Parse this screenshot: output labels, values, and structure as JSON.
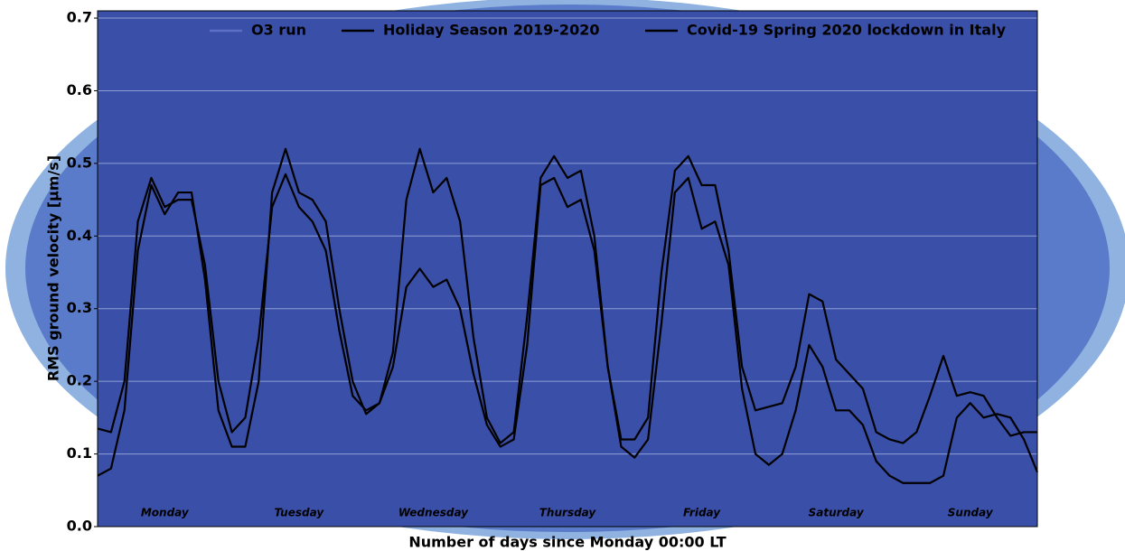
{
  "chart_data": {
    "type": "line",
    "xlabel": "Number of days since Monday 00:00 LT",
    "ylabel": "RMS ground velocity [μm/s]",
    "x": [
      0,
      0.1,
      0.2,
      0.3,
      0.4,
      0.5,
      0.6,
      0.7,
      0.8,
      0.9,
      1.0,
      1.1,
      1.2,
      1.3,
      1.4,
      1.5,
      1.6,
      1.7,
      1.8,
      1.9,
      2.0,
      2.1,
      2.2,
      2.3,
      2.4,
      2.5,
      2.6,
      2.7,
      2.8,
      2.9,
      3.0,
      3.1,
      3.2,
      3.3,
      3.4,
      3.5,
      3.6,
      3.7,
      3.8,
      3.9,
      4.0,
      4.1,
      4.2,
      4.3,
      4.4,
      4.5,
      4.6,
      4.7,
      4.8,
      4.9,
      5.0,
      5.1,
      5.2,
      5.3,
      5.4,
      5.5,
      5.6,
      5.7,
      5.8,
      5.9,
      6.0,
      6.1,
      6.2,
      6.3,
      6.4,
      6.5,
      6.6,
      6.7,
      6.8,
      6.9,
      7.0
    ],
    "series": [
      {
        "name": "O3 run",
        "color": "#5b6fc4"
      },
      {
        "name": "Holiday Season 2019-2020",
        "color": "#000000",
        "values": [
          0.135,
          0.13,
          0.2,
          0.42,
          0.48,
          0.44,
          0.45,
          0.45,
          0.36,
          0.2,
          0.13,
          0.15,
          0.26,
          0.44,
          0.485,
          0.44,
          0.42,
          0.38,
          0.27,
          0.18,
          0.16,
          0.17,
          0.24,
          0.45,
          0.52,
          0.46,
          0.48,
          0.42,
          0.26,
          0.15,
          0.115,
          0.13,
          0.29,
          0.48,
          0.51,
          0.48,
          0.49,
          0.4,
          0.22,
          0.12,
          0.12,
          0.15,
          0.35,
          0.49,
          0.51,
          0.47,
          0.47,
          0.38,
          0.22,
          0.16,
          0.165,
          0.17,
          0.22,
          0.32,
          0.31,
          0.23,
          0.21,
          0.19,
          0.13,
          0.12,
          0.115,
          0.13,
          0.18,
          0.235,
          0.18,
          0.185,
          0.18,
          0.15,
          0.125,
          0.13,
          0.13
        ]
      },
      {
        "name": "Covid-19 Spring 2020 lockdown in Italy",
        "color": "#000000",
        "values": [
          0.07,
          0.08,
          0.16,
          0.38,
          0.47,
          0.43,
          0.46,
          0.46,
          0.34,
          0.16,
          0.11,
          0.11,
          0.2,
          0.46,
          0.52,
          0.46,
          0.45,
          0.42,
          0.3,
          0.2,
          0.155,
          0.17,
          0.22,
          0.33,
          0.355,
          0.33,
          0.34,
          0.3,
          0.21,
          0.14,
          0.11,
          0.12,
          0.25,
          0.47,
          0.48,
          0.44,
          0.45,
          0.38,
          0.22,
          0.11,
          0.095,
          0.12,
          0.28,
          0.46,
          0.48,
          0.41,
          0.42,
          0.36,
          0.19,
          0.1,
          0.085,
          0.1,
          0.16,
          0.25,
          0.22,
          0.16,
          0.16,
          0.14,
          0.09,
          0.07,
          0.06,
          0.06,
          0.06,
          0.07,
          0.15,
          0.17,
          0.15,
          0.155,
          0.15,
          0.12,
          0.075
        ]
      }
    ],
    "day_labels": [
      "Monday",
      "Tuesday",
      "Wednesday",
      "Thursday",
      "Friday",
      "Saturday",
      "Sunday"
    ],
    "xlim": [
      0,
      7
    ],
    "ylim": [
      0,
      0.71
    ],
    "yticks": [
      {
        "value": 0,
        "label": "0.0"
      },
      0.1,
      0.2,
      0.3,
      0.4,
      0.5,
      0.6,
      0.7
    ],
    "grid": true
  }
}
